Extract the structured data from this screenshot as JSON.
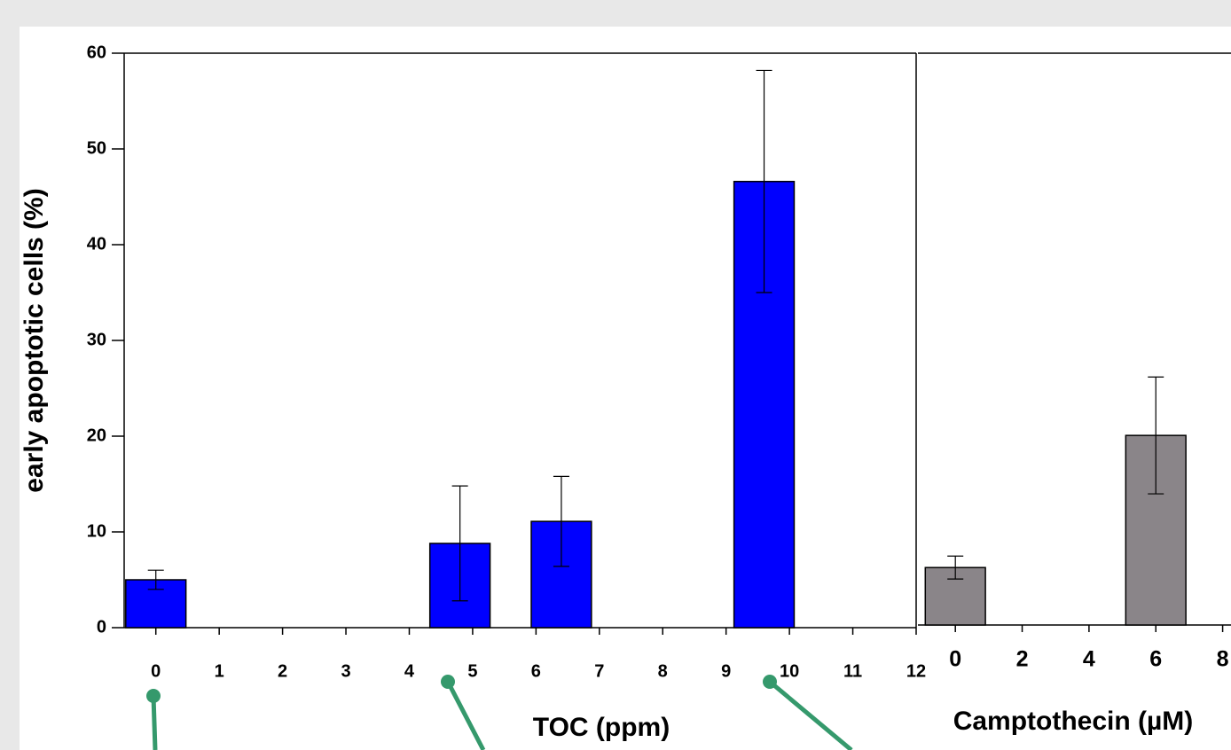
{
  "chart_data": [
    {
      "type": "bar",
      "x_label": "TOC (ppm)",
      "y_label": "early apoptotic cells (%)",
      "x": [
        0,
        4.8,
        6.4,
        9.6
      ],
      "values": [
        5.0,
        8.8,
        11.1,
        46.6
      ],
      "errors": [
        1.0,
        6.0,
        4.7,
        11.6
      ],
      "color": "#0000ff",
      "xlim": [
        -0.5,
        12
      ],
      "xticks": [
        0,
        1,
        2,
        3,
        4,
        5,
        6,
        7,
        8,
        9,
        10,
        11,
        12
      ],
      "ylim": [
        0,
        60
      ],
      "yticks": [
        0,
        10,
        20,
        30,
        40,
        50,
        60
      ]
    },
    {
      "type": "bar",
      "x_label": "Camptothecin (µM)",
      "x": [
        0,
        6
      ],
      "values": [
        6.0,
        19.8
      ],
      "errors": [
        1.2,
        6.1
      ],
      "color": "#8a8589",
      "xlim": [
        -1.12,
        8.25
      ],
      "xticks": [
        0,
        2,
        4,
        6,
        8
      ],
      "ylim": [
        0,
        60
      ]
    }
  ]
}
